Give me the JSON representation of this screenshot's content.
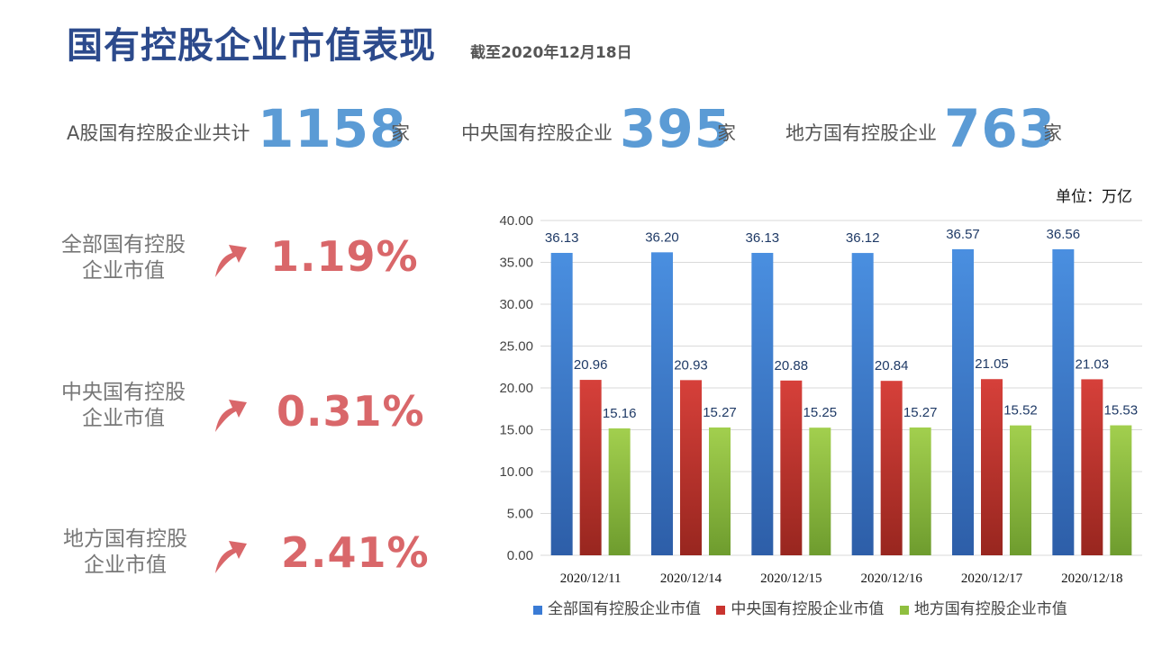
{
  "header": {
    "title": "国有控股企业市值表现",
    "subtitle": "截至2020年12月18日"
  },
  "stats": [
    {
      "label": "A股国有控股企业共计",
      "value": "1158",
      "unit": "家"
    },
    {
      "label": "中央国有控股企业",
      "value": "395",
      "unit": "家"
    },
    {
      "label": "地方国有控股企业",
      "value": "763",
      "unit": "家"
    }
  ],
  "changes": [
    {
      "label_line1": "全部国有控股",
      "label_line2": "企业市值",
      "value": "1.19%",
      "icon": "arrow-up-icon"
    },
    {
      "label_line1": "中央国有控股",
      "label_line2": "企业市值",
      "value": "0.31%",
      "icon": "arrow-up-icon"
    },
    {
      "label_line1": "地方国有控股",
      "label_line2": "企业市值",
      "value": "2.41%",
      "icon": "arrow-up-icon"
    }
  ],
  "unit_note": "单位：万亿",
  "colors": {
    "title": "#2c4a8c",
    "stat_number": "#5b9bd5",
    "change_value": "#d9676a",
    "series_blue": "#3a7bd5",
    "series_red": "#c9342f",
    "series_green": "#8fbf3f"
  },
  "chart_data": {
    "type": "bar",
    "categories": [
      "2020/12/11",
      "2020/12/14",
      "2020/12/15",
      "2020/12/16",
      "2020/12/17",
      "2020/12/18"
    ],
    "series": [
      {
        "name": "全部国有控股企业市值",
        "values": [
          36.13,
          36.2,
          36.13,
          36.12,
          36.57,
          36.56
        ]
      },
      {
        "name": "中央国有控股企业市值",
        "values": [
          20.96,
          20.93,
          20.88,
          20.84,
          21.05,
          21.03
        ]
      },
      {
        "name": "地方国有控股企业市值",
        "values": [
          15.16,
          15.27,
          15.25,
          15.27,
          15.52,
          15.53
        ]
      }
    ],
    "ylim": [
      0,
      40
    ],
    "yticks": [
      "0.00",
      "5.00",
      "10.00",
      "15.00",
      "20.00",
      "25.00",
      "30.00",
      "35.00",
      "40.00"
    ],
    "grid": true,
    "legend": "bottom"
  }
}
